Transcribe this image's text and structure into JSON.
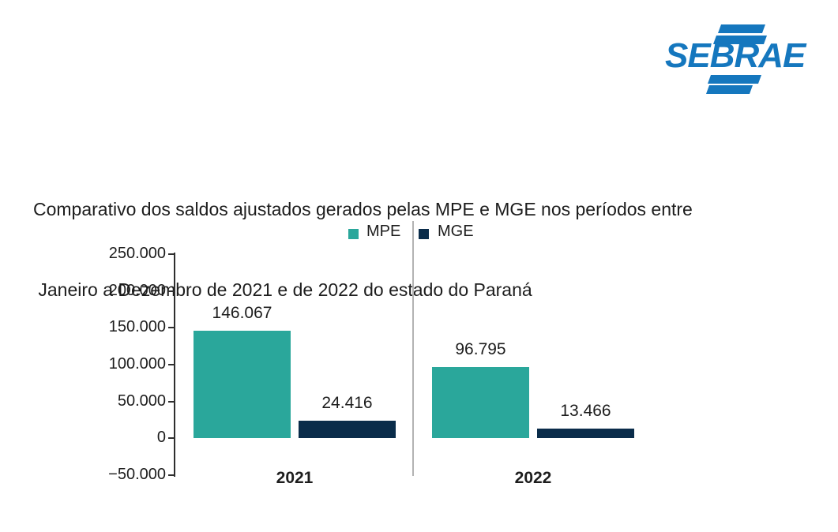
{
  "logo": {
    "text": "SEBRAE"
  },
  "title": {
    "line1": "Comparativo dos saldos ajustados gerados pelas MPE e MGE nos períodos entre",
    "line2": " Janeiro a Dezembro de 2021 e de 2022 do estado do Paraná"
  },
  "colors": {
    "mpe_teal": "#2AA79B",
    "mge_navy": "#0A2C4A",
    "logo_blue": "#1577BE",
    "text_dark": "#1D1D1D",
    "axis_dark": "#2E2E2E",
    "separator_gray": "#B3B3B3"
  },
  "chart_data": {
    "type": "bar",
    "title": "Comparativo dos saldos ajustados gerados pelas MPE e MGE nos períodos entre Janeiro a Dezembro de 2021 e de 2022 do estado do Paraná",
    "categories": [
      "2021",
      "2022"
    ],
    "series": [
      {
        "name": "MPE",
        "color_key": "mpe_teal",
        "values": [
          146067,
          96795
        ],
        "labels": [
          "146.067",
          "96.795"
        ]
      },
      {
        "name": "MGE",
        "color_key": "mge_navy",
        "values": [
          24416,
          13466
        ],
        "labels": [
          "24.416",
          "13.466"
        ]
      }
    ],
    "ylim": [
      -50000,
      250000
    ],
    "yticks": [
      {
        "value": 250000,
        "label": "250.000"
      },
      {
        "value": 200000,
        "label": "200.000"
      },
      {
        "value": 150000,
        "label": "150.000"
      },
      {
        "value": 100000,
        "label": "100.000"
      },
      {
        "value": 50000,
        "label": "50.000"
      },
      {
        "value": 0,
        "label": "0"
      },
      {
        "value": -50000,
        "label": "−50.000"
      }
    ],
    "xlabel": "",
    "ylabel": "",
    "grid": false,
    "legend_position": "top-center"
  }
}
